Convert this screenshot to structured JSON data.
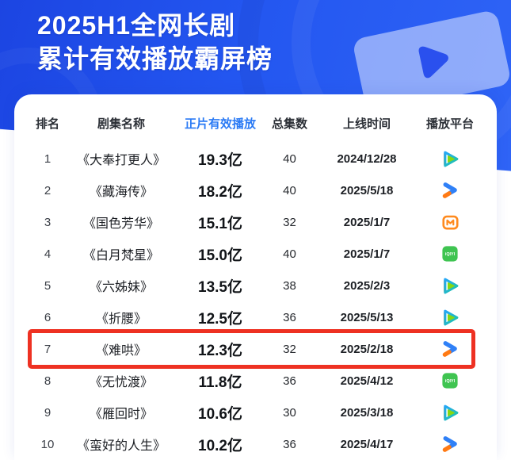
{
  "banner": {
    "title_line1": "2025H1全网长剧",
    "title_line2": "累计有效播放霸屏榜",
    "background_color": "#2356f0",
    "title_color": "#ffffff",
    "decoration_icon": "play-card-icon"
  },
  "table": {
    "accent_color": "#2b7bf5",
    "highlight_color": "#ee3122",
    "columns": [
      "排名",
      "剧集名称",
      "正片有效播放",
      "总集数",
      "上线时间",
      "播放平台"
    ],
    "rows": [
      {
        "rank": "1",
        "title": "《大奉打更人》",
        "views": "19.3亿",
        "episodes": "40",
        "date": "2024/12/28",
        "platform": "tencent-video",
        "highlighted": false
      },
      {
        "rank": "2",
        "title": "《藏海传》",
        "views": "18.2亿",
        "episodes": "40",
        "date": "2025/5/18",
        "platform": "youku",
        "highlighted": false
      },
      {
        "rank": "3",
        "title": "《国色芳华》",
        "views": "15.1亿",
        "episodes": "32",
        "date": "2025/1/7",
        "platform": "mango-tv",
        "highlighted": false
      },
      {
        "rank": "4",
        "title": "《白月梵星》",
        "views": "15.0亿",
        "episodes": "40",
        "date": "2025/1/7",
        "platform": "iqiyi",
        "highlighted": false
      },
      {
        "rank": "5",
        "title": "《六姊妹》",
        "views": "13.5亿",
        "episodes": "38",
        "date": "2025/2/3",
        "platform": "tencent-video",
        "highlighted": false
      },
      {
        "rank": "6",
        "title": "《折腰》",
        "views": "12.5亿",
        "episodes": "36",
        "date": "2025/5/13",
        "platform": "tencent-video",
        "highlighted": false
      },
      {
        "rank": "7",
        "title": "《难哄》",
        "views": "12.3亿",
        "episodes": "32",
        "date": "2025/2/18",
        "platform": "youku",
        "highlighted": true
      },
      {
        "rank": "8",
        "title": "《无忧渡》",
        "views": "11.8亿",
        "episodes": "36",
        "date": "2025/4/12",
        "platform": "iqiyi",
        "highlighted": false
      },
      {
        "rank": "9",
        "title": "《雁回时》",
        "views": "10.6亿",
        "episodes": "30",
        "date": "2025/3/18",
        "platform": "tencent-video",
        "highlighted": false
      },
      {
        "rank": "10",
        "title": "《蛮好的人生》",
        "views": "10.2亿",
        "episodes": "36",
        "date": "2025/4/17",
        "platform": "youku",
        "highlighted": false
      }
    ],
    "platform_names": {
      "tencent-video": "腾讯视频",
      "youku": "优酷",
      "mango-tv": "芒果TV",
      "iqiyi": "爱奇艺"
    }
  },
  "chart_data": {
    "type": "table",
    "title": "2025H1全网长剧 累计有效播放霸屏榜",
    "columns": [
      "排名",
      "剧集名称",
      "正片有效播放",
      "总集数",
      "上线时间",
      "播放平台"
    ],
    "rows": [
      [
        1,
        "《大奉打更人》",
        "19.3亿",
        40,
        "2024/12/28",
        "腾讯视频"
      ],
      [
        2,
        "《藏海传》",
        "18.2亿",
        40,
        "2025/5/18",
        "优酷"
      ],
      [
        3,
        "《国色芳华》",
        "15.1亿",
        32,
        "2025/1/7",
        "芒果TV"
      ],
      [
        4,
        "《白月梵星》",
        "15.0亿",
        40,
        "2025/1/7",
        "爱奇艺"
      ],
      [
        5,
        "《六姊妹》",
        "13.5亿",
        38,
        "2025/2/3",
        "腾讯视频"
      ],
      [
        6,
        "《折腰》",
        "12.5亿",
        36,
        "2025/5/13",
        "腾讯视频"
      ],
      [
        7,
        "《难哄》",
        "12.3亿",
        32,
        "2025/2/18",
        "优酷"
      ],
      [
        8,
        "《无忧渡》",
        "11.8亿",
        36,
        "2025/4/12",
        "爱奇艺"
      ],
      [
        9,
        "《雁回时》",
        "10.6亿",
        30,
        "2025/3/18",
        "腾讯视频"
      ],
      [
        10,
        "《蛮好的人生》",
        "10.2亿",
        36,
        "2025/4/17",
        "优酷"
      ]
    ],
    "annotations": [
      {
        "text": "red highlight box around rank 7 《难哄》",
        "row": 7
      }
    ],
    "views_unit": "亿",
    "views_values": [
      19.3,
      18.2,
      15.1,
      15.0,
      13.5,
      12.5,
      12.3,
      11.8,
      10.6,
      10.2
    ]
  }
}
